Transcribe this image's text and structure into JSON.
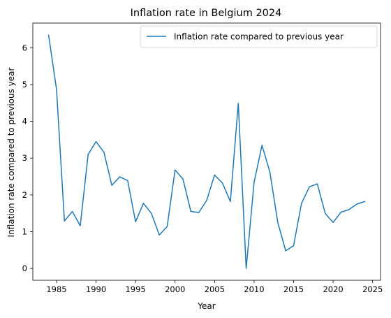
{
  "chart_data": {
    "type": "line",
    "title": "Inflation rate in Belgium 2024",
    "xlabel": "Year",
    "ylabel": "Inflation rate compared to previous year",
    "xlim": [
      1982,
      2026
    ],
    "ylim": [
      -0.32,
      6.67
    ],
    "x_ticks": [
      1985,
      1990,
      1995,
      2000,
      2005,
      2010,
      2015,
      2020,
      2025
    ],
    "y_ticks": [
      0,
      1,
      2,
      3,
      4,
      5,
      6
    ],
    "grid": false,
    "legend_position": "top-right",
    "series": [
      {
        "name": "Inflation rate compared to previous year",
        "color": "#1f77b4",
        "x": [
          1984,
          1985,
          1986,
          1987,
          1988,
          1989,
          1990,
          1991,
          1992,
          1993,
          1994,
          1995,
          1996,
          1997,
          1998,
          1999,
          2000,
          2001,
          2002,
          2003,
          2004,
          2005,
          2006,
          2007,
          2008,
          2009,
          2010,
          2011,
          2012,
          2013,
          2014,
          2015,
          2016,
          2017,
          2018,
          2019,
          2020,
          2021,
          2022,
          2023,
          2024
        ],
        "values": [
          6.34,
          4.87,
          1.29,
          1.55,
          1.16,
          3.1,
          3.45,
          3.16,
          2.26,
          2.49,
          2.39,
          1.27,
          1.77,
          1.5,
          0.91,
          1.14,
          2.68,
          2.43,
          1.55,
          1.52,
          1.85,
          2.54,
          2.32,
          1.82,
          4.49,
          0.0,
          2.34,
          3.35,
          2.62,
          1.25,
          0.48,
          0.62,
          1.77,
          2.22,
          2.3,
          1.5,
          1.25,
          1.53,
          1.6,
          1.75,
          1.82
        ]
      }
    ]
  }
}
